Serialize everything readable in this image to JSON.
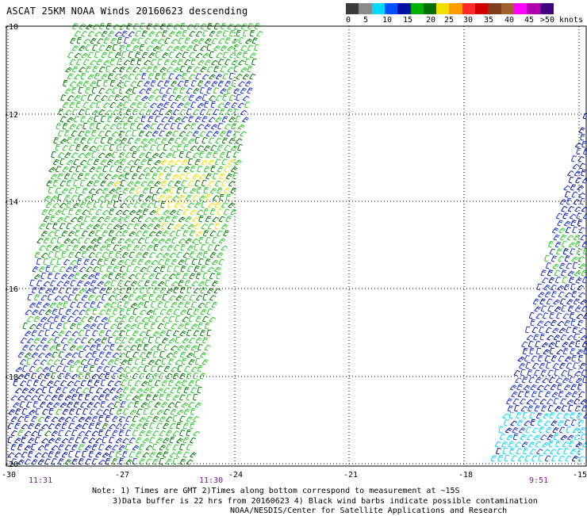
{
  "title": "ASCAT 25KM NOAA Winds 20160623 descending",
  "colorbar": {
    "colors": [
      "#3a3a3a",
      "#8a8a8a",
      "#00d8ff",
      "#0050ff",
      "#0010a0",
      "#00b000",
      "#007000",
      "#f0e000",
      "#ff9d00",
      "#ff2a2a",
      "#d00000",
      "#804020",
      "#a06030",
      "#ff00ff",
      "#b000b0",
      "#400080"
    ],
    "labels": [
      "0",
      "5",
      "10",
      "15",
      "20",
      "25",
      "30",
      "35",
      "40",
      "45",
      ">50 knots"
    ]
  },
  "map": {
    "lat_labels": [
      "-10",
      "-12",
      "-14",
      "-16",
      "-18",
      "-20"
    ],
    "lon_labels": [
      "-30",
      "-27",
      "-24",
      "-21",
      "-18",
      "-15"
    ],
    "time_labels": [
      "11:31",
      "11:30",
      "9:51"
    ]
  },
  "notes": {
    "line1": "Note: 1) Times are GMT 2)Times along bottom correspond to measurement at ~15S",
    "line2": "3)Data buffer is 22 hrs from 20160623 4) Black wind barbs indicate possible contamination",
    "line3": "NOAA/NESDIS/Center for Satellite Applications and Research"
  },
  "wind_colors": {
    "light_green": "#28c828",
    "dark_green": "#007800",
    "blue": "#1830d0",
    "dark_blue": "#0010a0",
    "yellow": "#f0e000",
    "cyan": "#00d8ff"
  }
}
